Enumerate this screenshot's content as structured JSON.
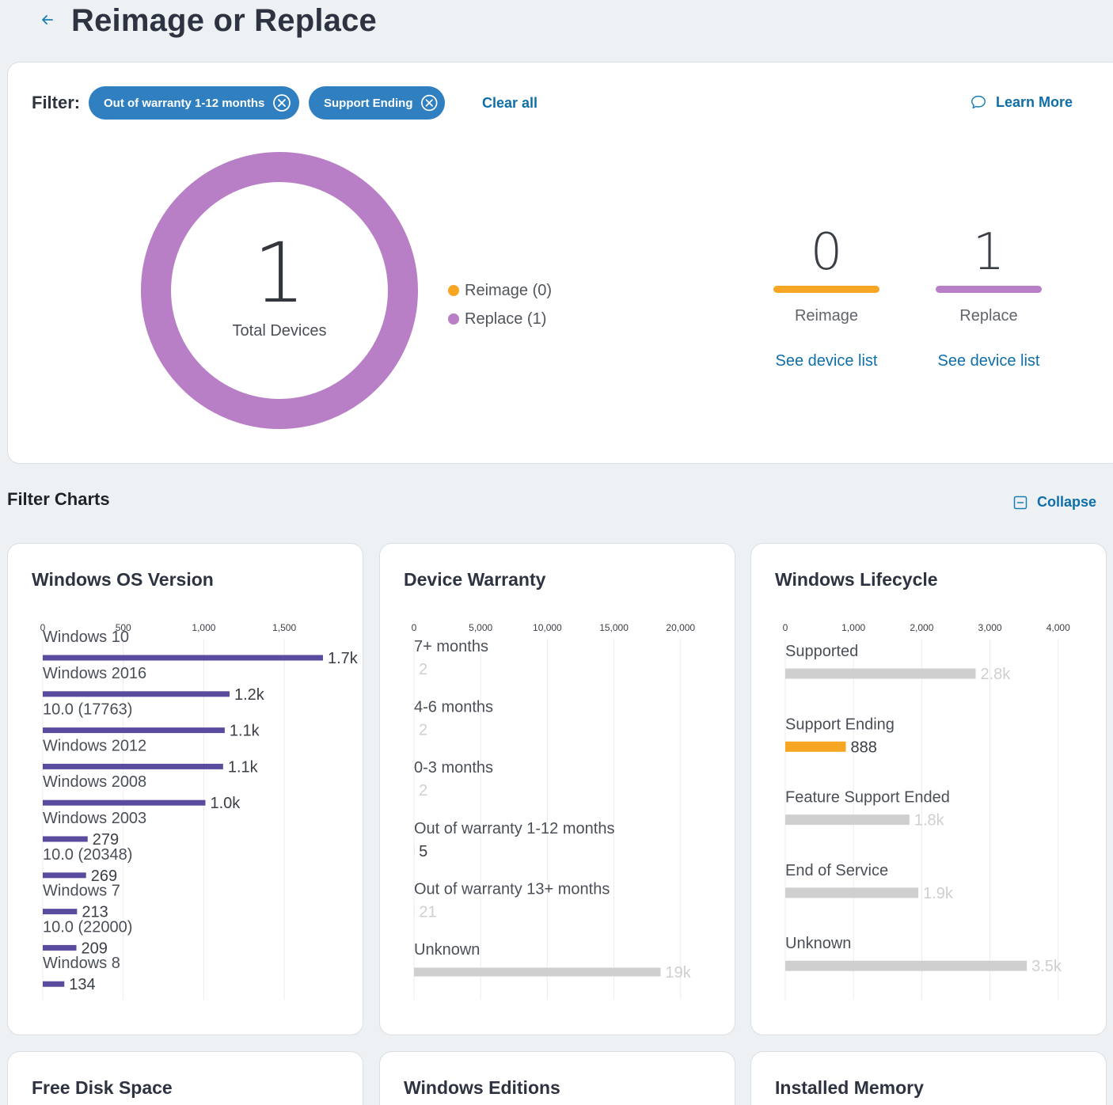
{
  "page": {
    "title": "Reimage or Replace"
  },
  "filter": {
    "label": "Filter:",
    "chips": [
      "Out of warranty 1-12 months",
      "Support Ending"
    ],
    "clear_all": "Clear all",
    "learn_more": "Learn More"
  },
  "summary": {
    "total": "1",
    "total_label": "Total Devices",
    "legend": [
      {
        "label": "Reimage (0)",
        "color": "#f6a623"
      },
      {
        "label": "Replace (1)",
        "color": "#b87fc7"
      }
    ],
    "donut": {
      "reimage": 0,
      "replace": 1,
      "reimage_color": "#f6a623",
      "replace_color": "#b87fc7"
    },
    "stats": [
      {
        "value": "0",
        "label": "Reimage",
        "link": "See device list",
        "color": "#f6a623"
      },
      {
        "value": "1",
        "label": "Replace",
        "link": "See device list",
        "color": "#b87fc7"
      }
    ]
  },
  "filter_charts": {
    "title": "Filter Charts",
    "collapse": "Collapse"
  },
  "chart_data": [
    {
      "type": "bar",
      "title": "Windows OS Version",
      "xlim": [
        0,
        1750
      ],
      "ticks": [
        0,
        500,
        1000,
        1500
      ],
      "tick_labels": [
        "0",
        "500",
        "1,000",
        "1,500"
      ],
      "categories": [
        "Windows 10",
        "Windows 2016",
        "10.0 (17763)",
        "Windows 2012",
        "Windows 2008",
        "Windows 2003",
        "10.0 (20348)",
        "Windows 7",
        "10.0 (22000)",
        "Windows 8"
      ],
      "values": [
        1740,
        1160,
        1130,
        1120,
        1010,
        279,
        269,
        213,
        209,
        134
      ],
      "value_labels": [
        "1.7k",
        "1.2k",
        "1.1k",
        "1.1k",
        "1.0k",
        "279",
        "269",
        "213",
        "209",
        "134"
      ],
      "highlighted": [
        true,
        true,
        true,
        true,
        true,
        true,
        true,
        true,
        true,
        true
      ],
      "color": "#5b4b9e",
      "muted_color": "#cfcfcf"
    },
    {
      "type": "bar",
      "title": "Device Warranty",
      "xlim": [
        0,
        21500
      ],
      "ticks": [
        0,
        5000,
        10000,
        15000,
        20000
      ],
      "tick_labels": [
        "0",
        "5,000",
        "10,000",
        "15,000",
        "20,000"
      ],
      "categories": [
        "7+ months",
        "4-6 months",
        "0-3 months",
        "Out of warranty 1-12 months",
        "Out of warranty 13+ months",
        "Unknown"
      ],
      "values": [
        2,
        2,
        2,
        5,
        21,
        18500
      ],
      "value_labels": [
        "2",
        "2",
        "2",
        "5",
        "21",
        "19k"
      ],
      "highlighted": [
        false,
        false,
        false,
        true,
        false,
        false
      ],
      "color": "#5b4b9e",
      "muted_color": "#cfcfcf"
    },
    {
      "type": "bar",
      "title": "Windows Lifecycle",
      "xlim": [
        0,
        4200
      ],
      "ticks": [
        0,
        1000,
        2000,
        3000,
        4000
      ],
      "tick_labels": [
        "0",
        "1,000",
        "2,000",
        "3,000",
        "4,000"
      ],
      "categories": [
        "Supported",
        "Support Ending",
        "Feature Support Ended",
        "End of Service",
        "Unknown"
      ],
      "values": [
        2790,
        888,
        1820,
        1950,
        3540
      ],
      "value_labels": [
        "2.8k",
        "888",
        "1.8k",
        "1.9k",
        "3.5k"
      ],
      "highlighted": [
        false,
        true,
        false,
        false,
        false
      ],
      "color": "#f6a623",
      "muted_color": "#cfcfcf"
    }
  ],
  "bottom_charts": [
    "Free Disk Space",
    "Windows Editions",
    "Installed Memory"
  ]
}
